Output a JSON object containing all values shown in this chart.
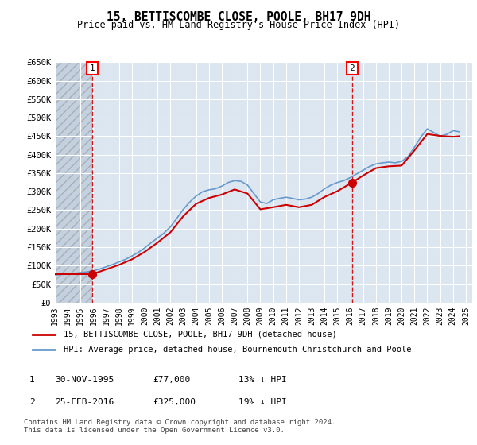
{
  "title": "15, BETTISCOMBE CLOSE, POOLE, BH17 9DH",
  "subtitle": "Price paid vs. HM Land Registry's House Price Index (HPI)",
  "ylabel": "",
  "xlabel": "",
  "ylim": [
    0,
    650000
  ],
  "yticks": [
    0,
    50000,
    100000,
    150000,
    200000,
    250000,
    300000,
    350000,
    400000,
    450000,
    500000,
    550000,
    600000,
    650000
  ],
  "ytick_labels": [
    "£0",
    "£50K",
    "£100K",
    "£150K",
    "£200K",
    "£250K",
    "£300K",
    "£350K",
    "£400K",
    "£450K",
    "£500K",
    "£550K",
    "£600K",
    "£650K"
  ],
  "xlim_start": 1993.0,
  "xlim_end": 2025.5,
  "xticks": [
    1993,
    1994,
    1995,
    1996,
    1997,
    1998,
    1999,
    2000,
    2001,
    2002,
    2003,
    2004,
    2005,
    2006,
    2007,
    2008,
    2009,
    2010,
    2011,
    2012,
    2013,
    2014,
    2015,
    2016,
    2017,
    2018,
    2019,
    2020,
    2021,
    2022,
    2023,
    2024,
    2025
  ],
  "background_color": "#dce6f1",
  "plot_bg_color": "#dce6f1",
  "grid_color": "#ffffff",
  "hatch_color": "#c0c0c0",
  "point1_x": 1995.92,
  "point1_y": 77000,
  "point2_x": 2016.15,
  "point2_y": 325000,
  "red_line_color": "#cc0000",
  "blue_line_color": "#6699cc",
  "marker_color": "#cc0000",
  "vline_color": "#cc0000",
  "legend_label_red": "15, BETTISCOMBE CLOSE, POOLE, BH17 9DH (detached house)",
  "legend_label_blue": "HPI: Average price, detached house, Bournemouth Christchurch and Poole",
  "table_row1": [
    "1",
    "30-NOV-1995",
    "£77,000",
    "13% ↓ HPI"
  ],
  "table_row2": [
    "2",
    "25-FEB-2016",
    "£325,000",
    "19% ↓ HPI"
  ],
  "footer": "Contains HM Land Registry data © Crown copyright and database right 2024.\nThis data is licensed under the Open Government Licence v3.0.",
  "hpi_x": [
    1993.0,
    1993.5,
    1994.0,
    1994.5,
    1995.0,
    1995.5,
    1996.0,
    1996.5,
    1997.0,
    1997.5,
    1998.0,
    1998.5,
    1999.0,
    1999.5,
    2000.0,
    2000.5,
    2001.0,
    2001.5,
    2002.0,
    2002.5,
    2003.0,
    2003.5,
    2004.0,
    2004.5,
    2005.0,
    2005.5,
    2006.0,
    2006.5,
    2007.0,
    2007.5,
    2008.0,
    2008.5,
    2009.0,
    2009.5,
    2010.0,
    2010.5,
    2011.0,
    2011.5,
    2012.0,
    2012.5,
    2013.0,
    2013.5,
    2014.0,
    2014.5,
    2015.0,
    2015.5,
    2016.0,
    2016.5,
    2017.0,
    2017.5,
    2018.0,
    2018.5,
    2019.0,
    2019.5,
    2020.0,
    2020.5,
    2021.0,
    2021.5,
    2022.0,
    2022.5,
    2023.0,
    2023.5,
    2024.0,
    2024.5
  ],
  "hpi_y": [
    75000,
    76000,
    78000,
    79000,
    81000,
    83000,
    86000,
    91000,
    97000,
    103000,
    110000,
    117000,
    126000,
    136000,
    148000,
    162000,
    175000,
    188000,
    205000,
    228000,
    252000,
    272000,
    288000,
    300000,
    305000,
    308000,
    315000,
    325000,
    330000,
    328000,
    318000,
    295000,
    272000,
    268000,
    278000,
    282000,
    285000,
    282000,
    278000,
    280000,
    285000,
    295000,
    308000,
    318000,
    325000,
    330000,
    338000,
    348000,
    358000,
    368000,
    375000,
    378000,
    380000,
    378000,
    382000,
    395000,
    420000,
    448000,
    470000,
    460000,
    450000,
    455000,
    465000,
    462000
  ],
  "red_x": [
    1993.0,
    1995.92,
    1995.92,
    2016.15,
    2016.15,
    2024.5
  ],
  "red_y": [
    77000,
    77000,
    77000,
    325000,
    325000,
    450000
  ]
}
